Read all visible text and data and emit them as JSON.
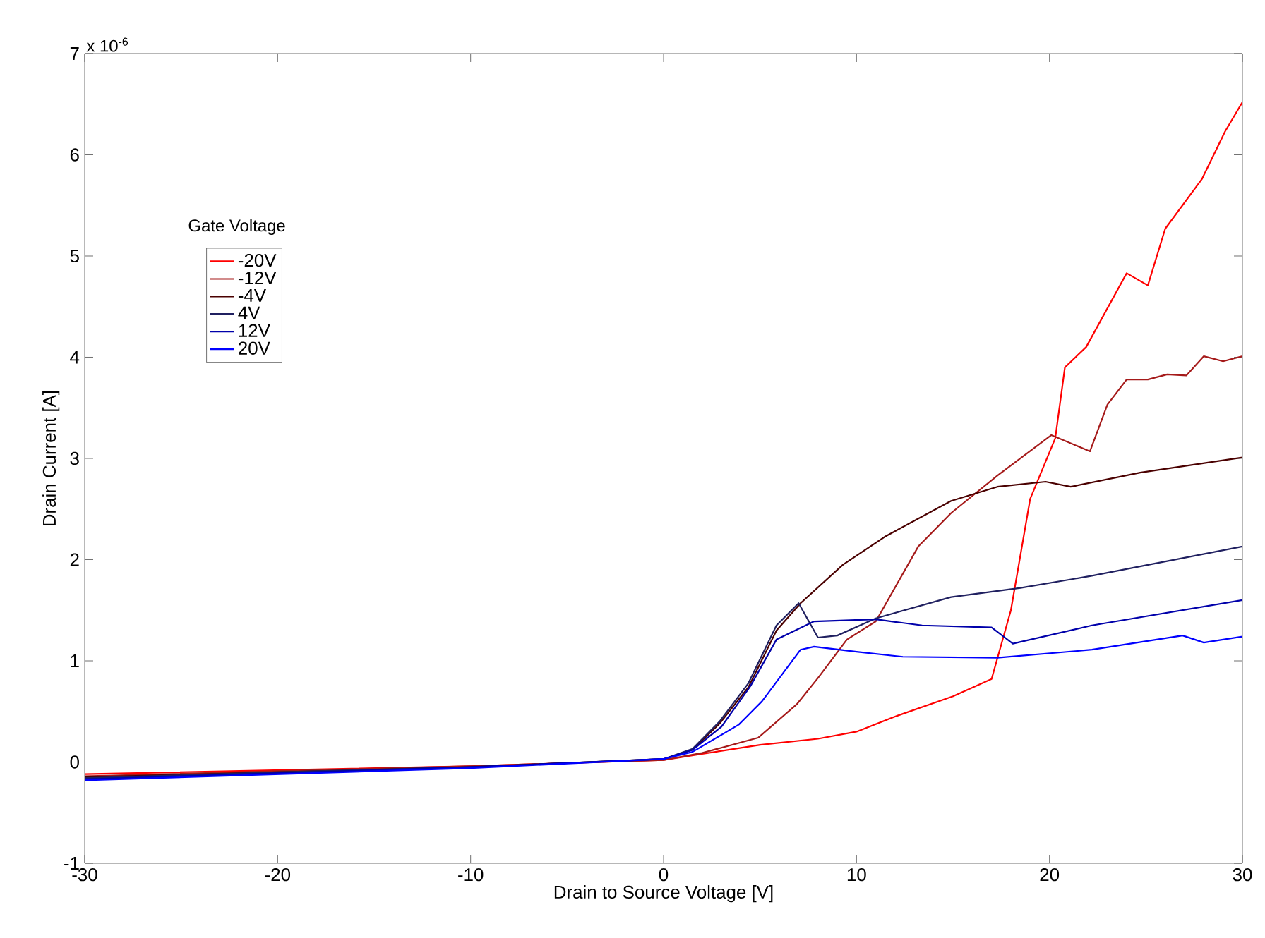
{
  "chart_data": {
    "type": "line",
    "xlabel": "Drain to Source Voltage [V]",
    "ylabel": "Drain Current [A]",
    "legend_title": "Gate Voltage",
    "annotations": [
      "x 10$^{-6}$"
    ],
    "xlim": [
      -30,
      30
    ],
    "xticks": [
      -30,
      -20,
      -10,
      0,
      10,
      20,
      30
    ],
    "ylim": [
      -1,
      7
    ],
    "yticks": [
      -1,
      0,
      1,
      2,
      3,
      4,
      5,
      6,
      7
    ],
    "grid": false,
    "legend": "top left",
    "marker": "none",
    "line_style": "solid",
    "series": [
      {
        "name": "-20V",
        "color": "#ff0000",
        "x": [
          -30,
          -20,
          -10,
          0,
          2,
          5,
          8,
          10,
          12,
          15,
          17,
          18,
          19,
          20.3,
          20.8,
          21.9,
          24,
          25.1,
          26,
          27.9,
          29.1,
          30
        ],
        "values": [
          -0.12,
          -0.08,
          -0.04,
          0.02,
          0.08,
          0.17,
          0.23,
          0.3,
          0.45,
          0.65,
          0.82,
          1.5,
          2.6,
          3.2,
          3.9,
          4.1,
          4.83,
          4.71,
          5.27,
          5.76,
          6.23,
          6.52
        ]
      },
      {
        "name": "-12V",
        "color": "#a51a1a",
        "x": [
          -30,
          -20,
          -10,
          0,
          2,
          4.9,
          6.9,
          8,
          9.5,
          11,
          13.2,
          14.9,
          17.3,
          20.1,
          22.1,
          23,
          24,
          25.1,
          26.1,
          27.1,
          28,
          29,
          30
        ],
        "values": [
          -0.14,
          -0.09,
          -0.04,
          0.02,
          0.09,
          0.24,
          0.57,
          0.83,
          1.21,
          1.39,
          2.13,
          2.46,
          2.83,
          3.23,
          3.07,
          3.53,
          3.78,
          3.78,
          3.83,
          3.82,
          4.01,
          3.96,
          4.01
        ]
      },
      {
        "name": "-4V",
        "color": "#4a0000",
        "x": [
          -30,
          -20,
          -10,
          0,
          1.5,
          2.9,
          4.4,
          5.85,
          7.1,
          9.3,
          11.5,
          14.9,
          17.3,
          19.8,
          21.1,
          24.7,
          30
        ],
        "values": [
          -0.15,
          -0.1,
          -0.05,
          0.03,
          0.12,
          0.38,
          0.74,
          1.3,
          1.57,
          1.95,
          2.23,
          2.58,
          2.72,
          2.77,
          2.72,
          2.86,
          3.01
        ]
      },
      {
        "name": "4V",
        "color": "#202060",
        "x": [
          -30,
          -20,
          -10,
          0,
          1.5,
          2.9,
          4.4,
          5.85,
          7,
          8,
          9,
          11,
          14.9,
          18.5,
          22.2,
          30
        ],
        "values": [
          -0.16,
          -0.1,
          -0.05,
          0.03,
          0.13,
          0.4,
          0.78,
          1.35,
          1.57,
          1.23,
          1.25,
          1.42,
          1.63,
          1.72,
          1.84,
          2.13
        ]
      },
      {
        "name": "12V",
        "color": "#0000aa",
        "x": [
          -30,
          -20,
          -10,
          0,
          1.5,
          3,
          4.5,
          5.85,
          7.8,
          11,
          13.4,
          17,
          18.1,
          22.2,
          30
        ],
        "values": [
          -0.17,
          -0.11,
          -0.05,
          0.03,
          0.12,
          0.35,
          0.75,
          1.21,
          1.39,
          1.41,
          1.35,
          1.33,
          1.17,
          1.35,
          1.6
        ]
      },
      {
        "name": "20V",
        "color": "#0000ff",
        "x": [
          -30,
          -20,
          -10,
          0,
          1.5,
          3.9,
          5.1,
          7.1,
          7.8,
          10,
          12.4,
          17.3,
          22.2,
          26.9,
          28,
          30
        ],
        "values": [
          -0.18,
          -0.12,
          -0.06,
          0.03,
          0.1,
          0.37,
          0.6,
          1.11,
          1.14,
          1.09,
          1.04,
          1.03,
          1.11,
          1.25,
          1.18,
          1.24
        ]
      }
    ]
  }
}
